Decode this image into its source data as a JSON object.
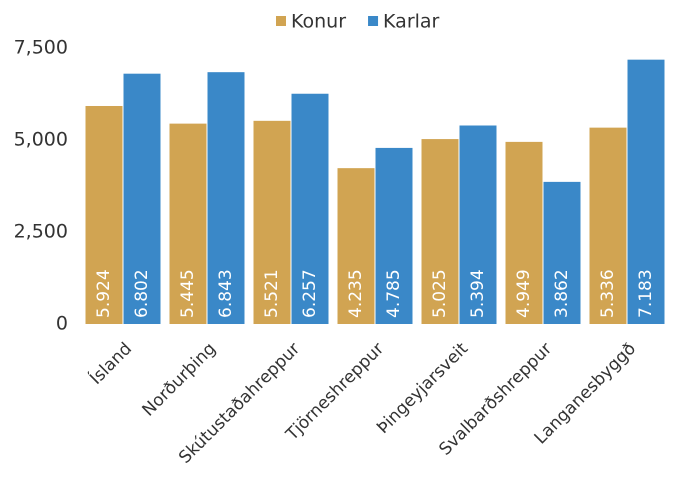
{
  "chart_data": {
    "type": "bar",
    "categories": [
      "Ísland",
      "Norðurþing",
      "Skútustaðahreppur",
      "Tjörneshreppur",
      "Þingeyjarsveit",
      "Svalbarðshreppur",
      "Langanesbyggð"
    ],
    "series": [
      {
        "name": "Konur",
        "color": "#d1a452",
        "values": [
          5924,
          5445,
          5521,
          4235,
          5025,
          4949,
          5336
        ],
        "value_labels": [
          "5.924",
          "5.445",
          "5.521",
          "4.235",
          "5.025",
          "4.949",
          "5.336"
        ]
      },
      {
        "name": "Karlar",
        "color": "#3a88c8",
        "values": [
          6802,
          6843,
          6257,
          4785,
          5394,
          3862,
          7183
        ],
        "value_labels": [
          "6.802",
          "6.843",
          "6.257",
          "4.785",
          "5.394",
          "3.862",
          "7.183"
        ]
      }
    ],
    "ylim": [
      0,
      7500
    ],
    "yticks": [
      0,
      {
        "value": 2500,
        "label": "2,500"
      },
      {
        "value": 5000,
        "label": "5,000"
      },
      {
        "value": 7500,
        "label": "7,500"
      }
    ],
    "grid": false,
    "legend": "top"
  }
}
